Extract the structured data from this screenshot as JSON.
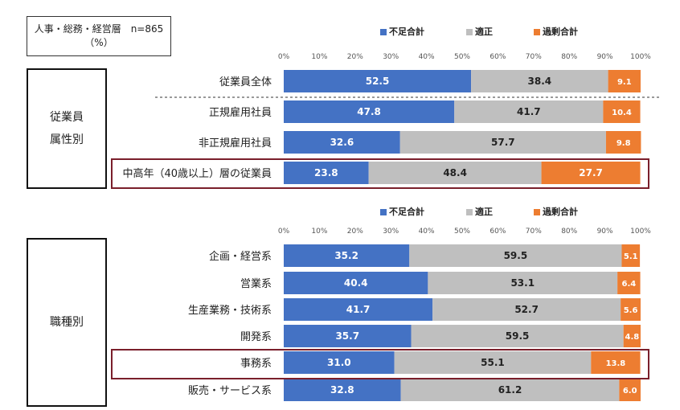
{
  "note": {
    "line1": "人事・総務・経営層　n=865",
    "line2": "（%）"
  },
  "groups": [
    {
      "line1": "従業員",
      "line2": "属性別"
    },
    {
      "line1": "職種別",
      "line2": ""
    }
  ],
  "colors": {
    "shortage": "#4472c4",
    "appropriate": "#bfbfbf",
    "excess": "#ed7d31",
    "highlight": "#7a1f2b"
  },
  "chart_data": [
    {
      "type": "bar",
      "orientation": "horizontal",
      "stacked": true,
      "title": "従業員属性別",
      "xlim": [
        0,
        100
      ],
      "ticks": [
        "0%",
        "10%",
        "20%",
        "30%",
        "40%",
        "50%",
        "60%",
        "70%",
        "80%",
        "90%",
        "100%"
      ],
      "legend": [
        "不足合計",
        "適正",
        "過剰合計"
      ],
      "categories": [
        "従業員全体",
        "正規雇用社員",
        "非正規雇用社員",
        "中高年（40歳以上）層の従業員"
      ],
      "series": [
        {
          "name": "不足合計",
          "values": [
            52.5,
            47.8,
            32.6,
            23.8
          ]
        },
        {
          "name": "適正",
          "values": [
            38.4,
            41.7,
            57.7,
            48.4
          ]
        },
        {
          "name": "過剰合計",
          "values": [
            9.1,
            10.4,
            9.8,
            27.7
          ]
        }
      ],
      "labels": [
        [
          "52.5",
          "38.4",
          "9.1"
        ],
        [
          "47.8",
          "41.7",
          "10.4"
        ],
        [
          "32.6",
          "57.7",
          "9.8"
        ],
        [
          "23.8",
          "48.4",
          "27.7"
        ]
      ],
      "highlighted": [
        "中高年（40歳以上）層の従業員"
      ]
    },
    {
      "type": "bar",
      "orientation": "horizontal",
      "stacked": true,
      "title": "職種別",
      "xlim": [
        0,
        100
      ],
      "ticks": [
        "0%",
        "10%",
        "20%",
        "30%",
        "40%",
        "50%",
        "60%",
        "70%",
        "80%",
        "90%",
        "100%"
      ],
      "legend": [
        "不足合計",
        "適正",
        "過剰合計"
      ],
      "categories": [
        "企画・経営系",
        "営業系",
        "生産業務・技術系",
        "開発系",
        "事務系",
        "販売・サービス系"
      ],
      "series": [
        {
          "name": "不足合計",
          "values": [
            35.2,
            40.4,
            41.7,
            35.7,
            31.0,
            32.8
          ]
        },
        {
          "name": "適正",
          "values": [
            59.5,
            53.1,
            52.7,
            59.5,
            55.1,
            61.2
          ]
        },
        {
          "name": "過剰合計",
          "values": [
            5.1,
            6.4,
            5.6,
            4.8,
            13.8,
            6.0
          ]
        }
      ],
      "labels": [
        [
          "35.2",
          "59.5",
          "5.1"
        ],
        [
          "40.4",
          "53.1",
          "6.4"
        ],
        [
          "41.7",
          "52.7",
          "5.6"
        ],
        [
          "35.7",
          "59.5",
          "4.8"
        ],
        [
          "31.0",
          "55.1",
          "13.8"
        ],
        [
          "32.8",
          "61.2",
          "6.0"
        ]
      ],
      "highlighted": [
        "事務系"
      ]
    }
  ]
}
